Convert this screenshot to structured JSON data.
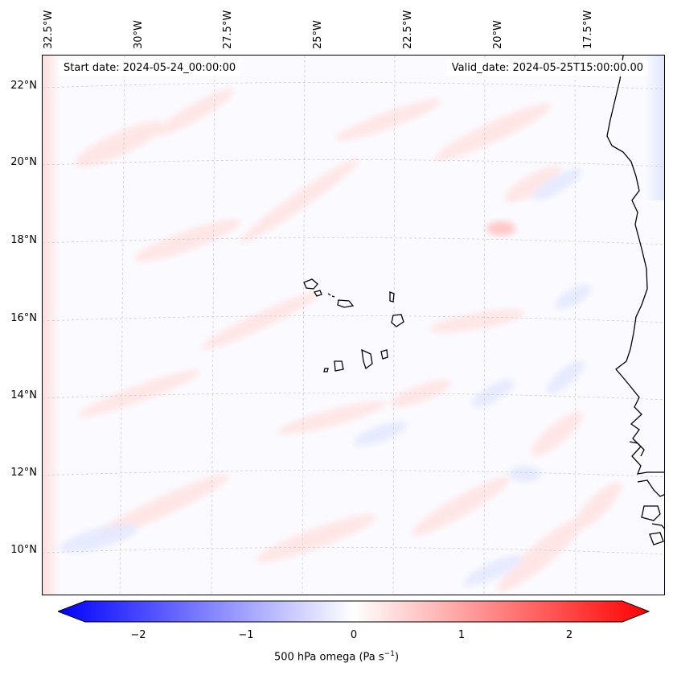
{
  "header": {
    "start_date": "Start date: 2024-05-24_00:00:00",
    "valid_date": "Valid_date: 2024-05-25T15:00:00.00"
  },
  "axes": {
    "longitudes": [
      "32.5°W",
      "30°W",
      "27.5°W",
      "25°W",
      "22.5°W",
      "20°W",
      "17.5°W"
    ],
    "latitudes": [
      "22°N",
      "20°N",
      "18°N",
      "16°N",
      "14°N",
      "12°N",
      "10°N"
    ]
  },
  "colorbar": {
    "label_main": "500 hPa omega (Pa s",
    "label_exp": "−1",
    "label_close": ")",
    "ticks": [
      "−2",
      "−1",
      "0",
      "1",
      "2"
    ],
    "range": [
      -2.6,
      2.6
    ],
    "low_color": "#0000ff",
    "mid_color": "#ffffff",
    "high_color": "#ff0000"
  }
}
